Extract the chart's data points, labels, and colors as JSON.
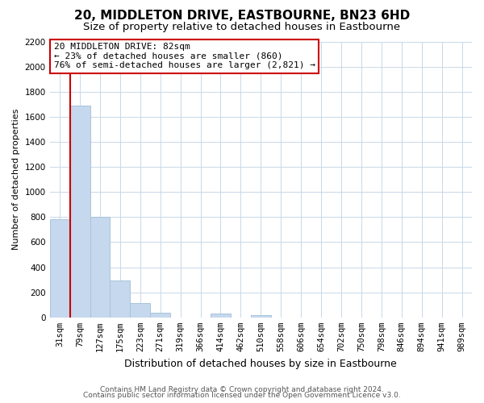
{
  "title": "20, MIDDLETON DRIVE, EASTBOURNE, BN23 6HD",
  "subtitle": "Size of property relative to detached houses in Eastbourne",
  "xlabel": "Distribution of detached houses by size in Eastbourne",
  "ylabel": "Number of detached properties",
  "categories": [
    "31sqm",
    "79sqm",
    "127sqm",
    "175sqm",
    "223sqm",
    "271sqm",
    "319sqm",
    "366sqm",
    "414sqm",
    "462sqm",
    "510sqm",
    "558sqm",
    "606sqm",
    "654sqm",
    "702sqm",
    "750sqm",
    "798sqm",
    "846sqm",
    "894sqm",
    "941sqm",
    "989sqm"
  ],
  "values": [
    780,
    1690,
    800,
    295,
    115,
    40,
    0,
    0,
    30,
    0,
    20,
    0,
    0,
    0,
    0,
    0,
    0,
    0,
    0,
    0,
    0
  ],
  "bar_color": "#c5d8ed",
  "bar_edge_color": "#a8c4dc",
  "property_line_color": "#cc0000",
  "ylim": [
    0,
    2200
  ],
  "yticks": [
    0,
    200,
    400,
    600,
    800,
    1000,
    1200,
    1400,
    1600,
    1800,
    2000,
    2200
  ],
  "annotation_title": "20 MIDDLETON DRIVE: 82sqm",
  "annotation_line1": "← 23% of detached houses are smaller (860)",
  "annotation_line2": "76% of semi-detached houses are larger (2,821) →",
  "annotation_box_color": "#ffffff",
  "annotation_box_edge": "#cc0000",
  "footer_line1": "Contains HM Land Registry data © Crown copyright and database right 2024.",
  "footer_line2": "Contains public sector information licensed under the Open Government Licence v3.0.",
  "grid_color": "#c8d8e8",
  "background_color": "#ffffff",
  "title_fontsize": 11,
  "subtitle_fontsize": 9.5,
  "xlabel_fontsize": 9,
  "ylabel_fontsize": 8,
  "tick_fontsize": 7.5,
  "annotation_fontsize": 8,
  "footer_fontsize": 6.5
}
